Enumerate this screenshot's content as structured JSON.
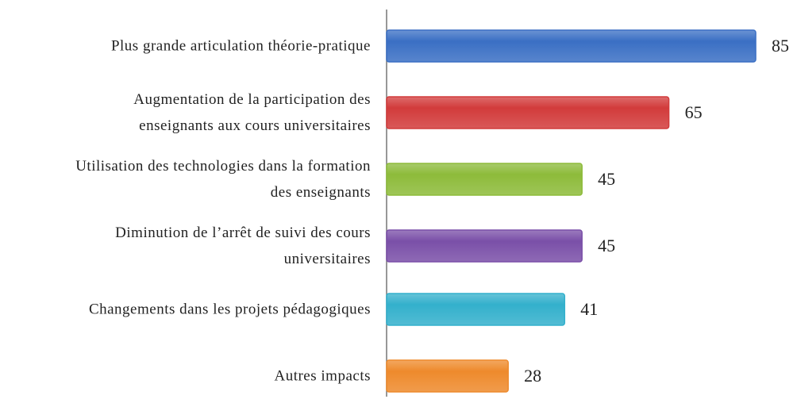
{
  "chart_data": {
    "type": "hbar",
    "categories": [
      "Plus grande articulation théorie-pratique",
      "Augmentation de la participation des\nenseignants aux cours universitaires",
      "Utilisation des technologies dans la formation\ndes enseignants",
      "Diminution de l’arrêt de suivi des cours\nuniversitaires",
      "Changements dans les projets pédagogiques",
      "Autres impacts"
    ],
    "values": [
      85,
      65,
      45,
      45,
      41,
      28
    ],
    "colors": [
      "#3a6fc4",
      "#d23b3b",
      "#8dbb3a",
      "#7a4fa8",
      "#33b0cc",
      "#ee8a2c"
    ]
  }
}
